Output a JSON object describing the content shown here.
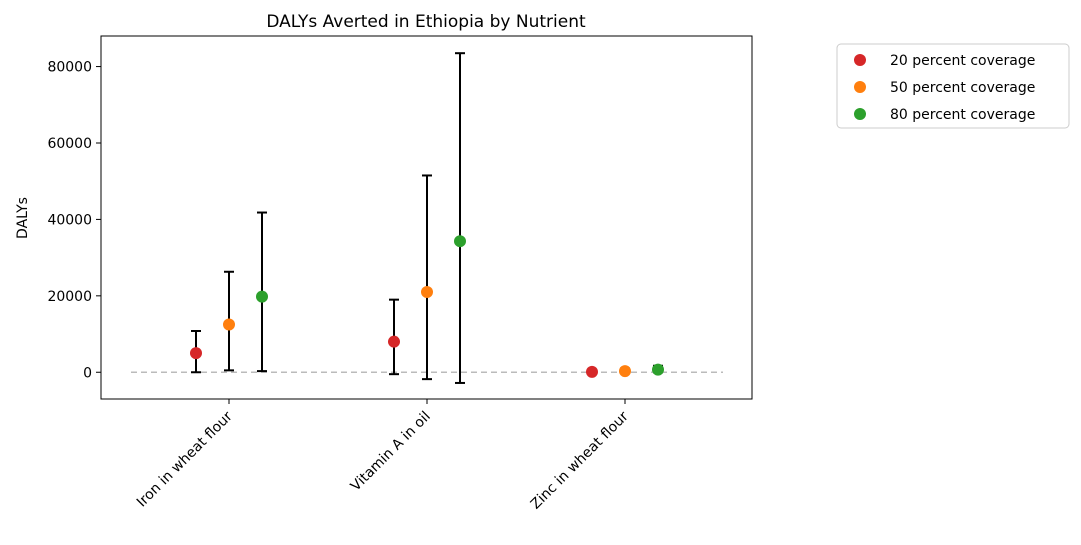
{
  "chart_data": {
    "type": "scatter",
    "title": "DALYs Averted in Ethiopia by Nutrient",
    "xlabel": "",
    "ylabel": "DALYs",
    "categories": [
      "Iron in wheat flour",
      "Vitamin A in oil",
      "Zinc in wheat flour"
    ],
    "ylim": [
      -7000,
      88000
    ],
    "yticks": [
      0,
      20000,
      40000,
      60000,
      80000
    ],
    "ytick_labels": [
      "0",
      "20000",
      "40000",
      "60000",
      "80000"
    ],
    "reference_line": 0,
    "grid": false,
    "legend_position": "outside-top-right",
    "series": [
      {
        "name": "20 percent coverage",
        "color": "#d62728",
        "values": [
          5000,
          8000,
          100
        ],
        "lower": [
          0,
          -500,
          0
        ],
        "upper": [
          10800,
          19000,
          500
        ]
      },
      {
        "name": "50 percent coverage",
        "color": "#ff7f0e",
        "values": [
          12500,
          21000,
          300
        ],
        "lower": [
          500,
          -1800,
          0
        ],
        "upper": [
          26300,
          51500,
          1000
        ]
      },
      {
        "name": "80 percent coverage",
        "color": "#2ca02c",
        "values": [
          19800,
          34300,
          700
        ],
        "lower": [
          300,
          -2800,
          0
        ],
        "upper": [
          41800,
          83500,
          1700
        ]
      }
    ]
  }
}
